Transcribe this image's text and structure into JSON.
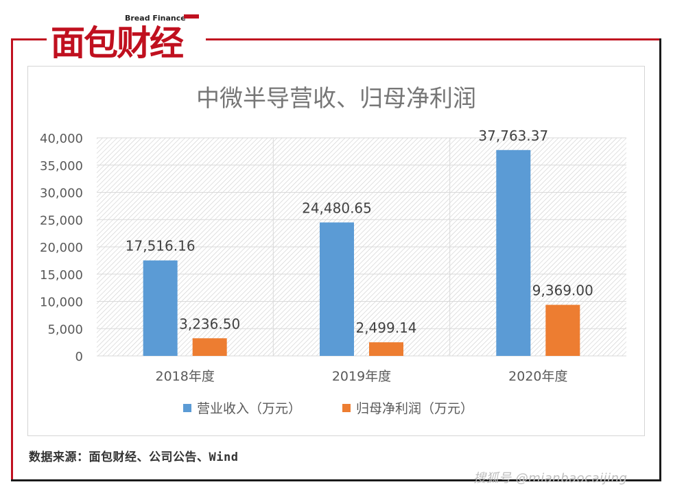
{
  "brand": {
    "logo_text": "面包财经",
    "logo_subtitle": "Bread Finance",
    "accent": "#c0101f"
  },
  "chart_data": {
    "type": "bar",
    "title": "中微半导营收、归母净利润",
    "categories": [
      "2018年度",
      "2019年度",
      "2020年度"
    ],
    "series": [
      {
        "name": "营业收入（万元）",
        "color": "#5b9bd5",
        "values": [
          17516.16,
          24480.65,
          37763.37
        ],
        "labels": [
          "17,516.16",
          "24,480.65",
          "37,763.37"
        ]
      },
      {
        "name": "归母净利润（万元）",
        "color": "#ed7d31",
        "values": [
          3236.5,
          2499.14,
          9369.0
        ],
        "labels": [
          "3,236.50",
          "2,499.14",
          "9,369.00"
        ]
      }
    ],
    "ylim": [
      0,
      40000
    ],
    "yticks": [
      0,
      5000,
      10000,
      15000,
      20000,
      25000,
      30000,
      35000,
      40000
    ],
    "ytick_labels": [
      "0",
      "5,000",
      "10,000",
      "15,000",
      "20,000",
      "25,000",
      "30,000",
      "35,000",
      "40,000"
    ],
    "grid": true,
    "legend_position": "bottom"
  },
  "footer": {
    "source": "数据来源：面包财经、公司公告、Wind",
    "watermark": "搜狐号 @mianbaocaijing"
  }
}
